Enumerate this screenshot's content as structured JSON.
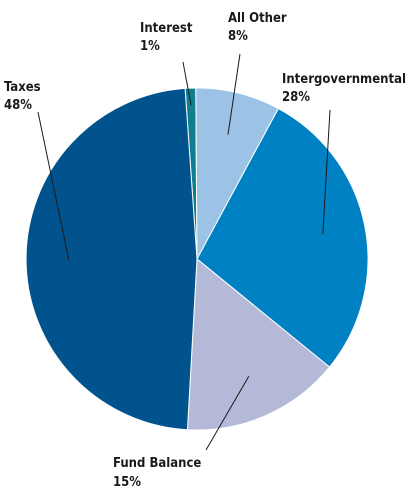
{
  "chart_data": {
    "type": "pie",
    "title": "",
    "start_angle_deg": -94,
    "direction": "clockwise",
    "slices": [
      {
        "name": "Interest",
        "label": "1%",
        "value": 1,
        "color": "#0f7f8f"
      },
      {
        "name": "All Other",
        "label": "8%",
        "value": 8,
        "color": "#9cc2e5"
      },
      {
        "name": "Intergovernmental",
        "label": "28%",
        "value": 28,
        "color": "#0081c3"
      },
      {
        "name": "Fund Balance",
        "label": "15%",
        "value": 15,
        "color": "#b5b9d8"
      },
      {
        "name": "Taxes",
        "label": "48%",
        "value": 48,
        "color": "#00538c"
      }
    ]
  }
}
